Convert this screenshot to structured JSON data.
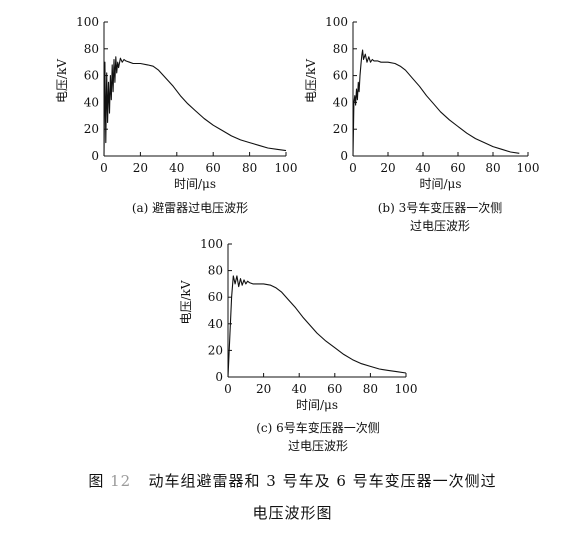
{
  "chart_data": [
    {
      "type": "line",
      "xlabel": "时间/μs",
      "ylabel": "电压/kV",
      "xlim": [
        0,
        100
      ],
      "ylim": [
        0,
        100
      ],
      "xticks": [
        "0",
        "20",
        "40",
        "60",
        "80",
        "100"
      ],
      "yticks": [
        "0",
        "20",
        "40",
        "60",
        "80",
        "100"
      ],
      "caption": [
        "(a) 避雷器过电压波形"
      ],
      "series": [
        {
          "x": [
            0,
            0.5,
            1.0,
            1.5,
            2.0,
            2.5,
            3.0,
            3.5,
            4.0,
            4.5,
            5.0,
            5.5,
            6.0,
            6.5,
            7.0,
            7.5,
            8.0,
            9.0,
            10,
            11,
            12,
            14,
            16,
            20,
            24,
            27,
            30,
            34,
            38,
            42,
            46,
            50,
            55,
            60,
            65,
            70,
            75,
            80,
            85,
            90,
            95,
            100
          ],
          "y": [
            0,
            70,
            10,
            62,
            25,
            55,
            32,
            60,
            42,
            68,
            48,
            72,
            55,
            74,
            62,
            70,
            66,
            73,
            70,
            72,
            71,
            70,
            69,
            69,
            68,
            67,
            64,
            58,
            52,
            45,
            39,
            34,
            28,
            23,
            19,
            15,
            12,
            10,
            8,
            6,
            5,
            4
          ]
        }
      ]
    },
    {
      "type": "line",
      "xlabel": "时间/μs",
      "ylabel": "电压/kV",
      "xlim": [
        0,
        100
      ],
      "ylim": [
        0,
        100
      ],
      "xticks": [
        "0",
        "20",
        "40",
        "60",
        "80",
        "100"
      ],
      "yticks": [
        "0",
        "20",
        "40",
        "60",
        "80",
        "100"
      ],
      "caption": [
        "(b) 3号车变压器一次侧",
        "过电压波形"
      ],
      "series": [
        {
          "x": [
            0,
            0.5,
            1.0,
            1.5,
            2.0,
            2.5,
            3.0,
            3.5,
            4.0,
            4.5,
            5.0,
            5.5,
            6.0,
            7.0,
            8.0,
            9.0,
            10,
            11,
            12,
            14,
            16,
            20,
            24,
            27,
            30,
            34,
            38,
            42,
            46,
            50,
            55,
            60,
            65,
            70,
            75,
            80,
            85,
            90,
            95
          ],
          "y": [
            0,
            40,
            45,
            38,
            50,
            42,
            55,
            48,
            60,
            68,
            75,
            79,
            72,
            76,
            70,
            74,
            70,
            72,
            71,
            71,
            70,
            70,
            69,
            67,
            64,
            58,
            52,
            45,
            39,
            33,
            27,
            22,
            17,
            13,
            10,
            7,
            5,
            3,
            2
          ]
        }
      ]
    },
    {
      "type": "line",
      "xlabel": "时间/μs",
      "ylabel": "电压/kV",
      "xlim": [
        0,
        100
      ],
      "ylim": [
        0,
        100
      ],
      "xticks": [
        "0",
        "20",
        "40",
        "60",
        "80",
        "100"
      ],
      "yticks": [
        "0",
        "20",
        "40",
        "60",
        "80",
        "100"
      ],
      "caption": [
        "(c) 6号车变压器一次侧",
        "过电压波形"
      ],
      "series": [
        {
          "x": [
            0,
            1.0,
            2.0,
            3.0,
            4.0,
            5.0,
            6.0,
            7.0,
            8.0,
            9.0,
            10,
            11,
            12,
            14,
            16,
            20,
            24,
            27,
            30,
            34,
            38,
            42,
            46,
            50,
            55,
            60,
            65,
            70,
            75,
            80,
            85,
            90,
            95,
            100
          ],
          "y": [
            0,
            30,
            60,
            76,
            70,
            76,
            68,
            74,
            69,
            73,
            70,
            72,
            71,
            70,
            70,
            70,
            69,
            67,
            64,
            58,
            52,
            45,
            39,
            33,
            27,
            22,
            17,
            13,
            10,
            8,
            6,
            5,
            4,
            3
          ]
        }
      ]
    }
  ],
  "figure_caption": {
    "prefix": "图",
    "number": "12",
    "line1": "动车组避雷器和 3 号车及 6 号车变压器一次侧过",
    "line2": "电压波形图"
  }
}
